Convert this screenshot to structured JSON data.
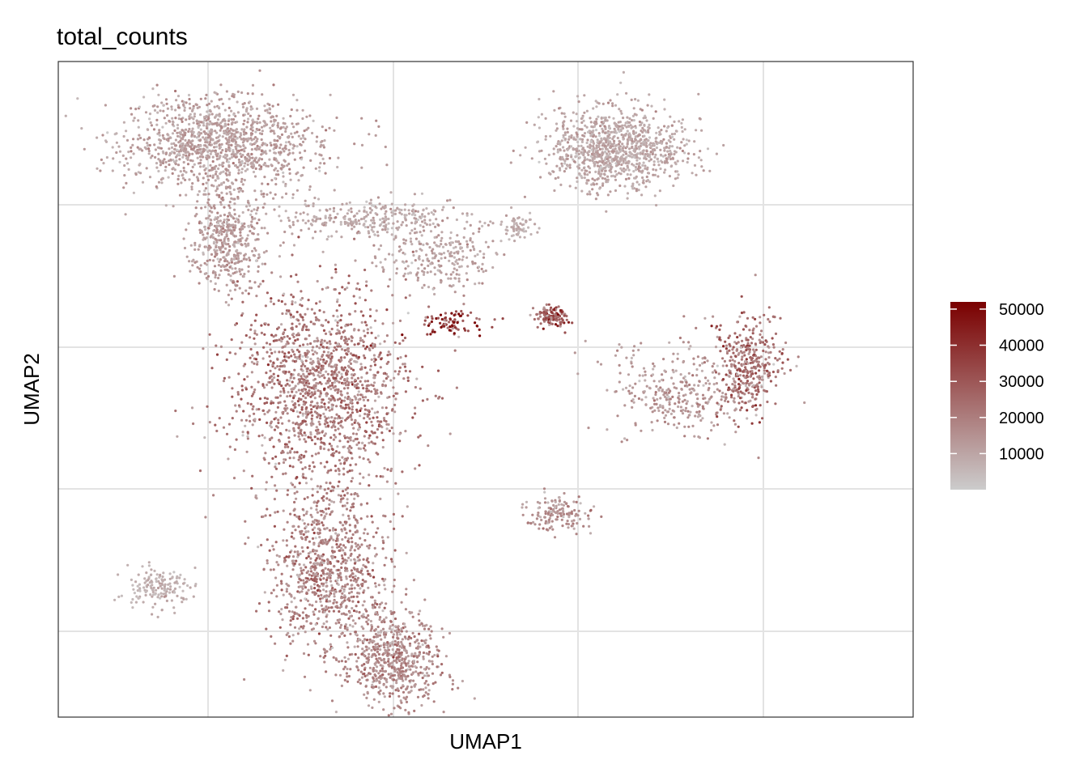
{
  "chart_data": {
    "type": "scatter",
    "title": "total_counts",
    "xlabel": "UMAP1",
    "ylabel": "UMAP2",
    "grid": true,
    "x_ticks_labeled": false,
    "y_ticks_labeled": false,
    "color_scale": {
      "name": "total_counts",
      "min": 0,
      "max": 52000,
      "low_color": "#cccccc",
      "high_color": "#7a0000",
      "ticks": [
        10000,
        20000,
        30000,
        40000,
        50000
      ],
      "tick_labels": [
        "10000",
        "20000",
        "30000",
        "40000",
        "50000"
      ],
      "placement": "right"
    },
    "clusters": [
      {
        "center": [
          -0.8,
          0.75
        ],
        "spread": [
          0.25,
          0.12
        ],
        "n": 1200,
        "mean_value": 11000
      },
      {
        "center": [
          -0.78,
          0.45
        ],
        "spread": [
          0.09,
          0.12
        ],
        "n": 450,
        "mean_value": 12000
      },
      {
        "center": [
          -0.35,
          0.52
        ],
        "spread": [
          0.22,
          0.05
        ],
        "n": 300,
        "mean_value": 9000
      },
      {
        "center": [
          0.4,
          0.73
        ],
        "spread": [
          0.18,
          0.1
        ],
        "n": 1000,
        "mean_value": 9500
      },
      {
        "center": [
          0.1,
          0.5
        ],
        "spread": [
          0.04,
          0.04
        ],
        "n": 60,
        "mean_value": 8000
      },
      {
        "center": [
          -0.15,
          0.4
        ],
        "spread": [
          0.15,
          0.08
        ],
        "n": 250,
        "mean_value": 10000
      },
      {
        "center": [
          -0.5,
          0.0
        ],
        "spread": [
          0.22,
          0.25
        ],
        "n": 1500,
        "mean_value": 20000
      },
      {
        "center": [
          -0.48,
          -0.55
        ],
        "spread": [
          0.15,
          0.22
        ],
        "n": 900,
        "mean_value": 18000
      },
      {
        "center": [
          -0.28,
          -0.82
        ],
        "spread": [
          0.12,
          0.12
        ],
        "n": 600,
        "mean_value": 16000
      },
      {
        "center": [
          -1.0,
          -0.6
        ],
        "spread": [
          0.08,
          0.05
        ],
        "n": 150,
        "mean_value": 7000
      },
      {
        "center": [
          -0.1,
          0.2
        ],
        "spread": [
          0.08,
          0.03
        ],
        "n": 80,
        "mean_value": 38000
      },
      {
        "center": [
          0.2,
          0.22
        ],
        "spread": [
          0.04,
          0.03
        ],
        "n": 120,
        "mean_value": 28000
      },
      {
        "center": [
          0.6,
          0.0
        ],
        "spread": [
          0.2,
          0.12
        ],
        "n": 350,
        "mean_value": 13000
      },
      {
        "center": [
          0.8,
          0.08
        ],
        "spread": [
          0.08,
          0.12
        ],
        "n": 350,
        "mean_value": 24000
      },
      {
        "center": [
          0.22,
          -0.38
        ],
        "spread": [
          0.08,
          0.05
        ],
        "n": 150,
        "mean_value": 14000
      }
    ]
  }
}
